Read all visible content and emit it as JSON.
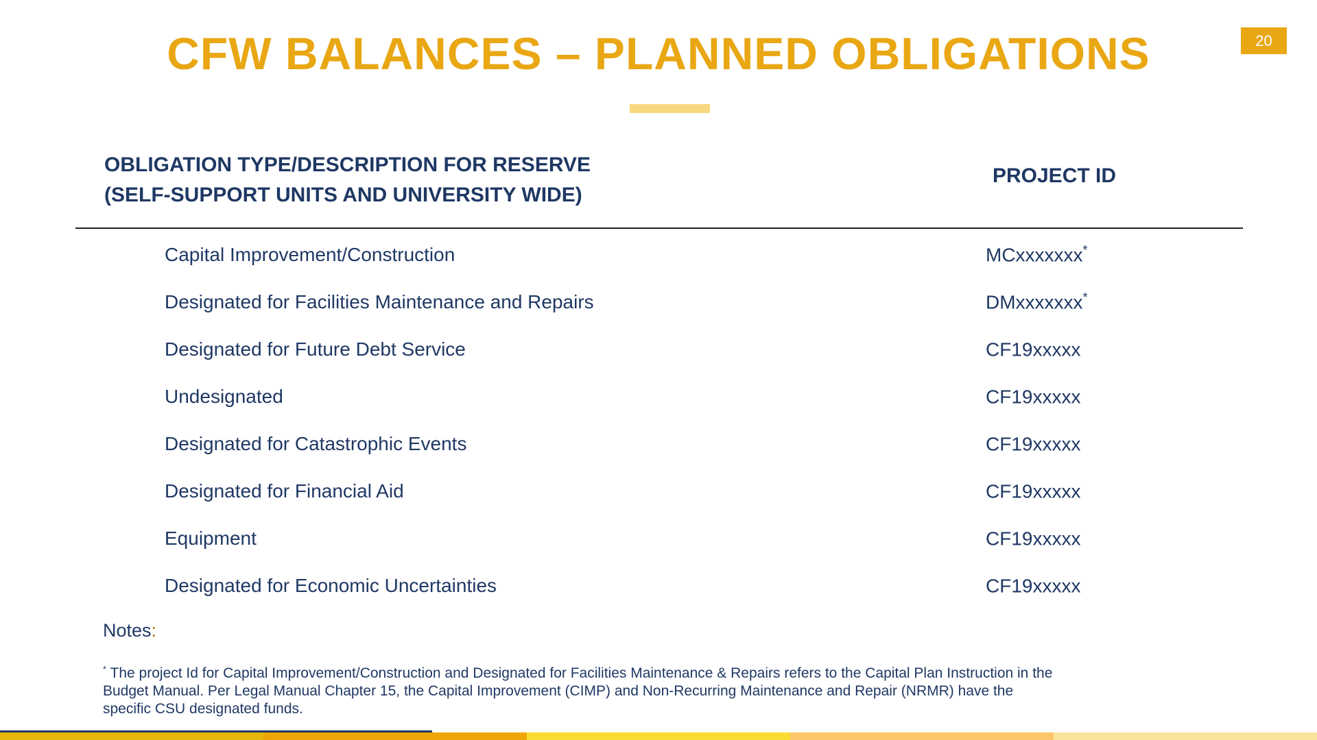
{
  "page": {
    "number": "20"
  },
  "title": {
    "text": "CFW BALANCES – PLANNED OBLIGATIONS"
  },
  "table": {
    "header": {
      "col1_line1": "OBLIGATION TYPE/DESCRIPTION FOR RESERVE",
      "col1_line2": "(SELF-SUPPORT UNITS AND UNIVERSITY WIDE)",
      "col2": "PROJECT ID"
    },
    "rows": [
      {
        "type": "Capital Improvement/Construction",
        "project_id": "MCxxxxxxx",
        "asterisk": "*"
      },
      {
        "type": "Designated for Facilities Maintenance and Repairs",
        "project_id": "DMxxxxxxx",
        "asterisk": "*"
      },
      {
        "type": "Designated for Future Debt Service",
        "project_id": "CF19xxxxx",
        "asterisk": ""
      },
      {
        "type": "Undesignated",
        "project_id": "CF19xxxxx",
        "asterisk": ""
      },
      {
        "type": "Designated for Catastrophic Events",
        "project_id": "CF19xxxxx",
        "asterisk": ""
      },
      {
        "type": "Designated for Financial Aid",
        "project_id": "CF19xxxxx",
        "asterisk": ""
      },
      {
        "type": "Equipment",
        "project_id": "CF19xxxxx",
        "asterisk": ""
      },
      {
        "type": "Designated for Economic Uncertainties",
        "project_id": "CF19xxxxx",
        "asterisk": ""
      }
    ]
  },
  "notes": {
    "label": "Notes",
    "colon": ":",
    "asterisk": "*",
    "lines": [
      "The project Id for Capital Improvement/Construction and Designated for Facilities Maintenance & Repairs refers to the Capital Plan Instruction in the",
      "Budget Manual. Per Legal Manual Chapter 15, the Capital Improvement (CIMP) and Non-Recurring Maintenance and Repair (NRMR) have the",
      "specific CSU designated funds."
    ]
  },
  "colors": {
    "title_gold": "#E9A714",
    "navy": "#1F3864",
    "underline_gold": "#F7D87E",
    "bar_segments": [
      "#E5B70A",
      "#EDA606",
      "#F9DC31",
      "#FBC669",
      "#FAE49B"
    ]
  }
}
